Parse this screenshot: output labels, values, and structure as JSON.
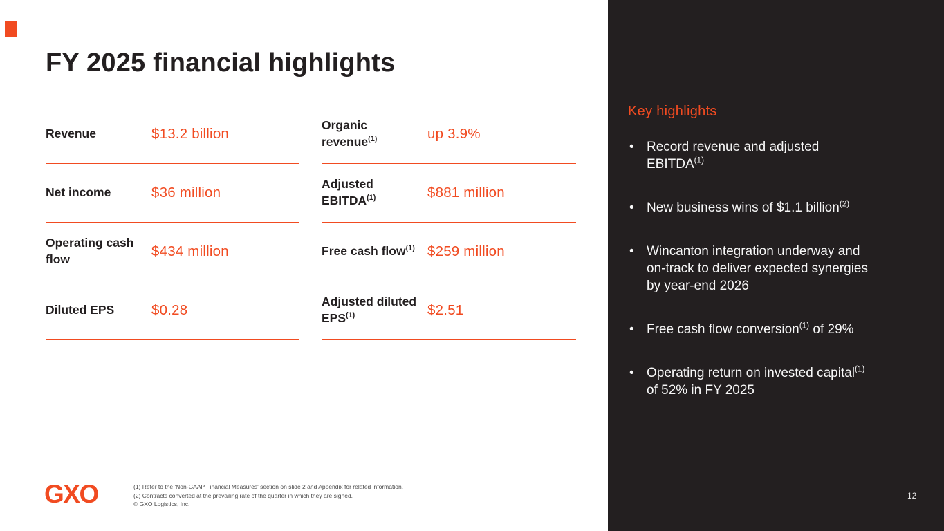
{
  "colors": {
    "accent": "#F14B21",
    "panel": "#231F20",
    "text_dark": "#231F20",
    "text_light": "#F7F7F7"
  },
  "title": "FY 2025 financial highlights",
  "metrics": [
    {
      "label": "Revenue",
      "sup": "",
      "value": "$13.2 billion"
    },
    {
      "label": "Organic revenue",
      "sup": "(1)",
      "value": "up 3.9%"
    },
    {
      "label": "Net income",
      "sup": "",
      "value": "$36 million"
    },
    {
      "label": "Adjusted EBITDA",
      "sup": "(1)",
      "value": "$881 million"
    },
    {
      "label": "Operating cash flow",
      "sup": "",
      "value": "$434 million"
    },
    {
      "label": "Free cash flow",
      "sup": "(1)",
      "value": "$259 million"
    },
    {
      "label": "Diluted EPS",
      "sup": "",
      "value": "$0.28"
    },
    {
      "label": "Adjusted diluted EPS",
      "sup": "(1)",
      "value": "$2.51"
    }
  ],
  "key_highlights": {
    "heading": "Key highlights",
    "bullets": [
      {
        "pre": "Record revenue and adjusted EBITDA",
        "sup": "(1)",
        "post": ""
      },
      {
        "pre": "New business wins of $1.1 billion",
        "sup": "(2)",
        "post": ""
      },
      {
        "pre": "Wincanton integration underway and on-track to deliver expected synergies by year-end 2026",
        "sup": "",
        "post": ""
      },
      {
        "pre": "Free cash flow conversion",
        "sup": "(1)",
        "post": " of 29%"
      },
      {
        "pre": "Operating return on invested capital",
        "sup": "(1)",
        "post": " of 52% in FY 2025"
      }
    ]
  },
  "footer": {
    "logo": "GXO",
    "footnotes": [
      "(1) Refer to the 'Non-GAAP Financial Measures' section on slide 2 and Appendix for related information.",
      "(2) Contracts converted at the prevailing rate of the quarter in which they are signed.",
      "© GXO Logistics, Inc."
    ],
    "page_number": "12"
  }
}
